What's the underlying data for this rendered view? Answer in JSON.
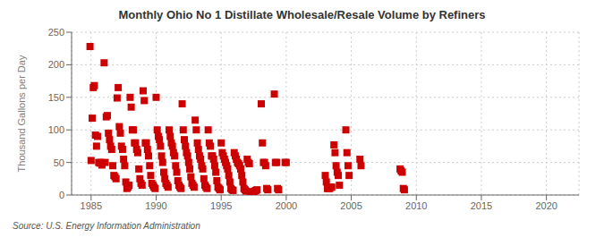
{
  "chart_data": {
    "type": "scatter",
    "title": "Monthly Ohio No 1 Distillate Wholesale/Resale Volume by Refiners",
    "y_label": "Thousand Gallons per Day",
    "annotation": "Source: U.S. Energy Information Administration",
    "color": "#CC0000",
    "marker": "square",
    "grid": true,
    "xlim": [
      1983.5,
      2022.5
    ],
    "ylim": [
      0,
      250
    ],
    "xticks": [
      1985,
      1990,
      1995,
      2000,
      2005,
      2010,
      2015,
      2020
    ],
    "yticks": [
      0,
      50,
      100,
      150,
      200,
      250
    ],
    "x": [
      1984.917,
      1985.0,
      1985.083,
      1985.167,
      1985.25,
      1985.333,
      1985.417,
      1985.5,
      1985.583,
      1985.667,
      1985.75,
      1985.833,
      1986.0,
      1986.083,
      1986.167,
      1986.25,
      1986.333,
      1986.417,
      1986.5,
      1986.583,
      1986.667,
      1986.75,
      1986.833,
      1986.917,
      1987.0,
      1987.083,
      1987.167,
      1987.25,
      1987.333,
      1987.417,
      1987.5,
      1987.583,
      1987.667,
      1987.75,
      1987.833,
      1987.917,
      1988.0,
      1988.083,
      1988.167,
      1988.25,
      1988.333,
      1988.417,
      1988.5,
      1988.583,
      1988.667,
      1988.75,
      1988.833,
      1988.917,
      1989.0,
      1989.083,
      1989.167,
      1989.25,
      1989.333,
      1989.417,
      1989.5,
      1989.583,
      1989.667,
      1989.75,
      1989.833,
      1989.917,
      1990.0,
      1990.083,
      1990.167,
      1990.25,
      1990.333,
      1990.417,
      1990.5,
      1990.583,
      1990.667,
      1990.75,
      1990.833,
      1990.917,
      1991.0,
      1991.083,
      1991.167,
      1991.25,
      1991.333,
      1991.417,
      1991.5,
      1991.583,
      1991.667,
      1991.75,
      1991.833,
      1991.917,
      1992.0,
      1992.083,
      1992.167,
      1992.25,
      1992.333,
      1992.417,
      1992.5,
      1992.583,
      1992.667,
      1992.75,
      1992.833,
      1992.917,
      1993.0,
      1993.083,
      1993.167,
      1993.25,
      1993.333,
      1993.417,
      1993.5,
      1993.583,
      1993.667,
      1993.75,
      1993.833,
      1993.917,
      1994.0,
      1994.083,
      1994.167,
      1994.25,
      1994.333,
      1994.417,
      1994.5,
      1994.583,
      1994.667,
      1994.75,
      1994.833,
      1994.917,
      1995.0,
      1995.083,
      1995.167,
      1995.25,
      1995.333,
      1995.417,
      1995.5,
      1995.583,
      1995.667,
      1995.75,
      1995.833,
      1995.917,
      1996.0,
      1996.083,
      1996.167,
      1996.25,
      1996.333,
      1996.417,
      1996.5,
      1996.583,
      1996.667,
      1996.75,
      1996.833,
      1996.917,
      1997.0,
      1997.083,
      1997.167,
      1997.25,
      1997.333,
      1997.417,
      1997.5,
      1997.583,
      1997.667,
      1997.75,
      1998.083,
      1998.167,
      1998.25,
      1998.333,
      1998.417,
      1998.5,
      1998.583,
      1999.083,
      1999.167,
      1999.25,
      1999.333,
      1999.417,
      1999.917,
      2000.0,
      2003.0,
      2003.083,
      2003.167,
      2003.25,
      2003.333,
      2003.417,
      2003.5,
      2003.667,
      2003.75,
      2003.833,
      2003.917,
      2004.0,
      2004.083,
      2004.583,
      2004.667,
      2004.75,
      2004.833,
      2005.667,
      2005.75,
      2008.75,
      2008.833,
      2008.917,
      2009.0,
      2009.083
    ],
    "values": [
      228,
      53,
      118,
      165,
      168,
      92,
      75,
      90,
      50,
      49,
      50,
      46,
      203,
      50,
      120,
      122,
      95,
      85,
      75,
      70,
      45,
      30,
      28,
      25,
      149,
      165,
      105,
      95,
      75,
      70,
      55,
      45,
      20,
      10,
      12,
      15,
      150,
      135,
      100,
      100,
      80,
      80,
      70,
      65,
      40,
      25,
      18,
      15,
      160,
      145,
      80,
      80,
      70,
      60,
      45,
      30,
      18,
      15,
      12,
      10,
      150,
      100,
      90,
      85,
      75,
      60,
      50,
      35,
      25,
      18,
      15,
      12,
      100,
      90,
      80,
      75,
      65,
      60,
      45,
      35,
      22,
      15,
      12,
      10,
      140,
      100,
      85,
      75,
      65,
      60,
      50,
      40,
      28,
      18,
      15,
      12,
      115,
      100,
      80,
      70,
      60,
      55,
      45,
      40,
      25,
      15,
      12,
      10,
      100,
      80,
      75,
      60,
      60,
      55,
      45,
      35,
      22,
      12,
      10,
      8,
      80,
      65,
      60,
      55,
      50,
      45,
      40,
      30,
      20,
      10,
      8,
      7,
      65,
      60,
      55,
      50,
      48,
      45,
      40,
      30,
      20,
      10,
      8,
      6,
      55,
      50,
      48,
      5,
      3,
      4,
      5,
      6,
      7,
      8,
      140,
      80,
      50,
      50,
      45,
      10,
      8,
      155,
      50,
      50,
      10,
      8,
      50,
      50,
      30,
      20,
      10,
      10,
      10,
      12,
      12,
      77,
      65,
      45,
      35,
      30,
      15,
      100,
      65,
      45,
      30,
      55,
      45,
      40,
      37,
      35,
      10,
      8
    ]
  }
}
